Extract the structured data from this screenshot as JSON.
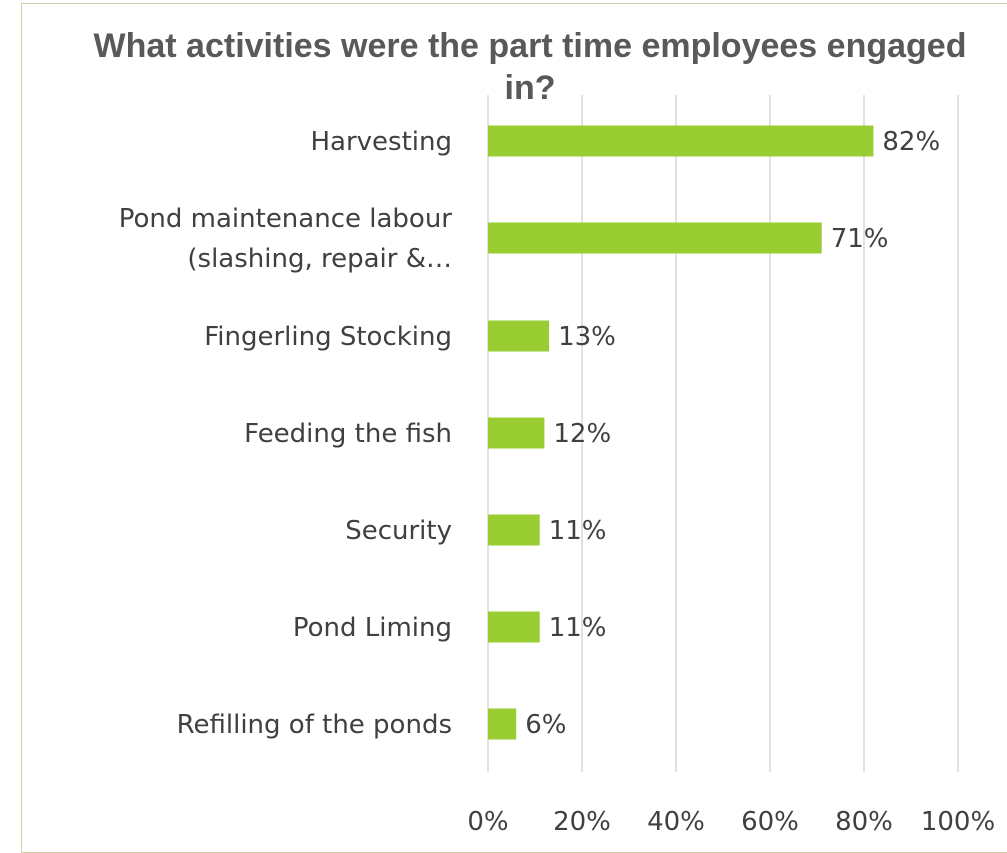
{
  "chart_data": {
    "type": "bar",
    "orientation": "horizontal",
    "title": "What activities were the part time employees engaged in?",
    "categories": [
      [
        "Harvesting"
      ],
      [
        "Pond maintenance labour",
        "(slashing, repair &…"
      ],
      [
        "Fingerling Stocking"
      ],
      [
        "Feeding the fish"
      ],
      [
        "Security"
      ],
      [
        "Pond Liming"
      ],
      [
        "Refilling of the ponds"
      ]
    ],
    "values": [
      82,
      71,
      13,
      12,
      11,
      11,
      6
    ],
    "value_labels": [
      "82%",
      "71%",
      "13%",
      "12%",
      "11%",
      "11%",
      "6%"
    ],
    "xlim": [
      0,
      100
    ],
    "xticks": [
      0,
      20,
      40,
      60,
      80,
      100
    ],
    "xtick_labels": [
      "0%",
      "20%",
      "40%",
      "60%",
      "80%",
      "100%"
    ],
    "grid": true,
    "legend": "none",
    "bar_color": "#9acd32",
    "gridline_color": "#d9d9d9",
    "text_color": "#404040",
    "title_color": "#595959"
  }
}
